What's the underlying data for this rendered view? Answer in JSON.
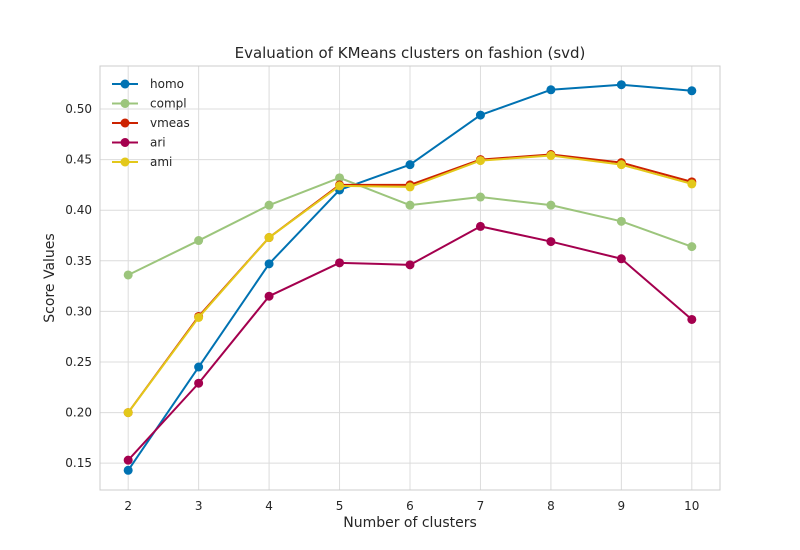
{
  "chart_data": {
    "type": "line",
    "title": "Evaluation of KMeans clusters on fashion (svd)",
    "xlabel": "Number of clusters",
    "ylabel": "Score Values",
    "x": [
      2,
      3,
      4,
      5,
      6,
      7,
      8,
      9,
      10
    ],
    "xlim": [
      1.6,
      10.4
    ],
    "ylim": [
      0.1235,
      0.5425
    ],
    "yticks": [
      "0.15",
      "0.20",
      "0.25",
      "0.30",
      "0.35",
      "0.40",
      "0.45",
      "0.50"
    ],
    "ytick_values": [
      0.15,
      0.2,
      0.25,
      0.3,
      0.35,
      0.4,
      0.45,
      0.5
    ],
    "xticks": [
      "2",
      "3",
      "4",
      "5",
      "6",
      "7",
      "8",
      "9",
      "10"
    ],
    "grid": true,
    "legend_position": "top-left",
    "series": [
      {
        "name": "homo",
        "color": "#0072b2",
        "values": [
          0.143,
          0.245,
          0.347,
          0.42,
          0.445,
          0.494,
          0.519,
          0.524,
          0.518
        ]
      },
      {
        "name": "compl",
        "color": "#9cc57c",
        "values": [
          0.336,
          0.37,
          0.405,
          0.432,
          0.405,
          0.413,
          0.405,
          0.389,
          0.364
        ]
      },
      {
        "name": "vmeas",
        "color": "#cc2200",
        "values": [
          0.2,
          0.295,
          0.373,
          0.425,
          0.425,
          0.45,
          0.455,
          0.447,
          0.428
        ]
      },
      {
        "name": "ari",
        "color": "#a4004e",
        "values": [
          0.153,
          0.229,
          0.315,
          0.348,
          0.346,
          0.384,
          0.369,
          0.352,
          0.292
        ]
      },
      {
        "name": "ami",
        "color": "#e3c81a",
        "values": [
          0.2,
          0.294,
          0.373,
          0.424,
          0.423,
          0.449,
          0.454,
          0.445,
          0.426
        ]
      }
    ]
  }
}
